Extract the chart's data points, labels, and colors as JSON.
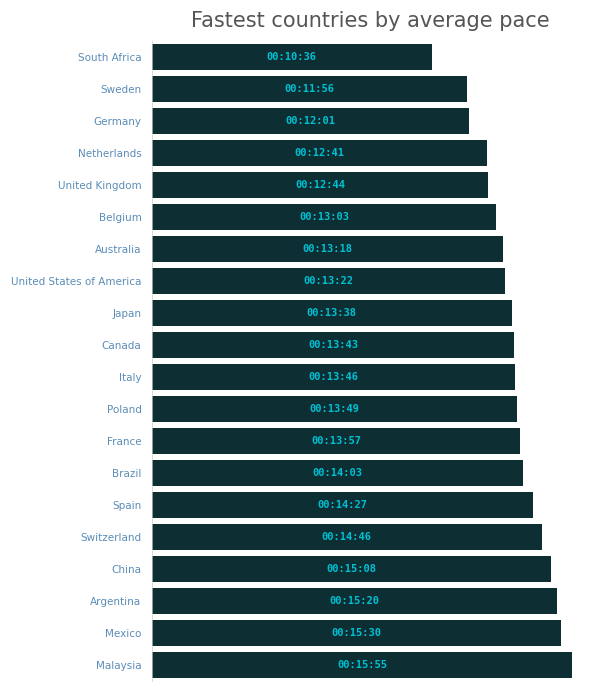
{
  "title": "Fastest countries by average pace",
  "title_fontsize": 15,
  "title_color": "#555555",
  "background_color": "#ffffff",
  "bar_color": "#0d2f33",
  "label_color": "#5b8db8",
  "value_color": "#00c0d4",
  "countries": [
    "South Africa",
    "Sweden",
    "Germany",
    "Netherlands",
    "United Kingdom",
    "Belgium",
    "Australia",
    "United States of America",
    "Japan",
    "Canada",
    "Italy",
    "Poland",
    "France",
    "Brazil",
    "Spain",
    "Switzerland",
    "China",
    "Argentina",
    "Mexico",
    "Malaysia"
  ],
  "times": [
    "00:10:36",
    "00:11:56",
    "00:12:01",
    "00:12:41",
    "00:12:44",
    "00:13:03",
    "00:13:18",
    "00:13:22",
    "00:13:38",
    "00:13:43",
    "00:13:46",
    "00:13:49",
    "00:13:57",
    "00:14:03",
    "00:14:27",
    "00:14:46",
    "00:15:08",
    "00:15:20",
    "00:15:30",
    "00:15:55"
  ],
  "values_seconds": [
    636,
    716,
    721,
    761,
    764,
    783,
    798,
    802,
    818,
    823,
    826,
    829,
    837,
    843,
    867,
    886,
    908,
    920,
    930,
    955
  ]
}
